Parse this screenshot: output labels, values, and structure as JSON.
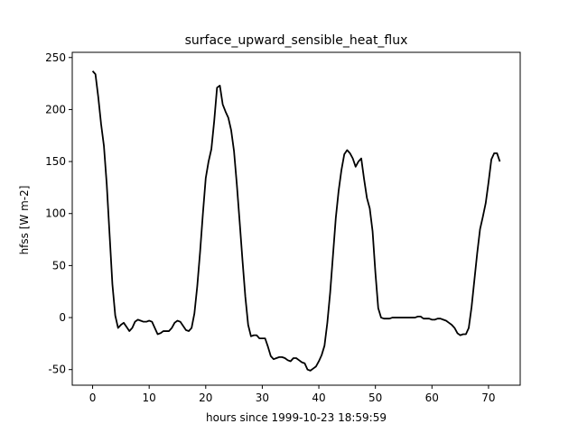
{
  "chart_data": {
    "type": "line",
    "title": "surface_upward_sensible_heat_flux",
    "xlabel": "hours since 1999-10-23 18:59:59",
    "ylabel": "hfss [W m-2]",
    "xlim": [
      -3.6,
      75.6
    ],
    "ylim": [
      -65,
      255
    ],
    "xticks": [
      0,
      10,
      20,
      30,
      40,
      50,
      60,
      70
    ],
    "yticks": [
      -50,
      0,
      50,
      100,
      150,
      200,
      250
    ],
    "grid": false,
    "series": [
      {
        "name": "hfss",
        "color": "#000000",
        "x": [
          0,
          0.5,
          1,
          1.5,
          2,
          2.5,
          3,
          3.5,
          4,
          4.5,
          5,
          5.5,
          6,
          6.5,
          7,
          7.5,
          8,
          8.5,
          9,
          9.5,
          10,
          10.5,
          11,
          11.5,
          12,
          12.5,
          13,
          13.5,
          14,
          14.5,
          15,
          15.5,
          16,
          16.5,
          17,
          17.5,
          18,
          18.5,
          19,
          19.5,
          20,
          20.5,
          21,
          21.5,
          22,
          22.5,
          23,
          23.5,
          24,
          24.5,
          25,
          25.5,
          26,
          26.5,
          27,
          27.5,
          28,
          28.5,
          29,
          29.5,
          30,
          30.5,
          31,
          31.5,
          32,
          32.5,
          33,
          33.5,
          34,
          34.5,
          35,
          35.5,
          36,
          36.5,
          37,
          37.5,
          38,
          38.5,
          39,
          39.5,
          40,
          40.5,
          41,
          41.5,
          42,
          42.5,
          43,
          43.5,
          44,
          44.5,
          45,
          45.5,
          46,
          46.5,
          47,
          47.5,
          48,
          48.5,
          49,
          49.5,
          50,
          50.5,
          51,
          51.5,
          52,
          52.5,
          53,
          53.5,
          54,
          54.5,
          55,
          55.5,
          56,
          56.5,
          57,
          57.5,
          58,
          58.5,
          59,
          59.5,
          60,
          60.5,
          61,
          61.5,
          62,
          62.5,
          63,
          63.5,
          64,
          64.5,
          65,
          65.5,
          66,
          66.5,
          67,
          67.5,
          68,
          68.5,
          69,
          69.5,
          70,
          70.5,
          71,
          71.5,
          72
        ],
        "values": [
          237,
          234,
          212,
          186,
          165,
          128,
          80,
          32,
          2,
          -10,
          -7,
          -5,
          -9,
          -13,
          -10,
          -4,
          -2,
          -3,
          -4,
          -4,
          -3,
          -4,
          -10,
          -16,
          -15,
          -13,
          -13,
          -13,
          -10,
          -5,
          -3,
          -4,
          -8,
          -12,
          -13,
          -10,
          4,
          30,
          63,
          100,
          134,
          150,
          162,
          189,
          221,
          223,
          205,
          198,
          192,
          180,
          160,
          128,
          92,
          55,
          20,
          -7,
          -18,
          -17,
          -17,
          -20,
          -20,
          -20,
          -28,
          -37,
          -40,
          -39,
          -38,
          -38,
          -39,
          -41,
          -42,
          -39,
          -39,
          -41,
          -43,
          -44,
          -50,
          -51,
          -49,
          -47,
          -42,
          -36,
          -27,
          -5,
          24,
          60,
          96,
          122,
          142,
          157,
          161,
          158,
          153,
          145,
          150,
          153,
          133,
          115,
          105,
          83,
          43,
          9,
          0,
          -1,
          -1,
          -1,
          0,
          0,
          0,
          0,
          0,
          0,
          0,
          0,
          0,
          1,
          1,
          -1,
          -1,
          -1,
          -2,
          -2,
          -1,
          -1,
          -2,
          -3,
          -5,
          -7,
          -10,
          -15,
          -17,
          -16,
          -16,
          -10,
          10,
          36,
          62,
          85,
          97,
          110,
          130,
          152,
          158,
          158,
          150
        ]
      }
    ]
  }
}
